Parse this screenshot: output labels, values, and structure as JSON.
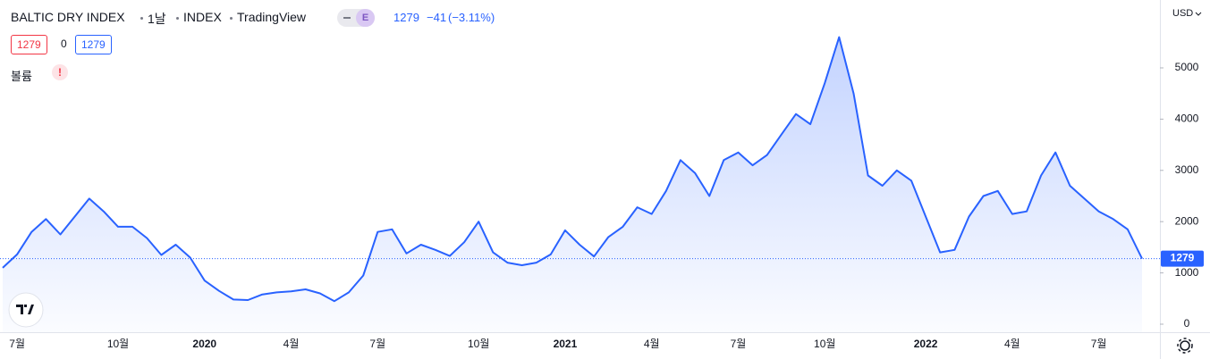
{
  "header": {
    "symbol": "BALTIC DRY INDEX",
    "interval": "1날",
    "exchange": "INDEX",
    "source": "TradingView",
    "badge": "E",
    "price": "1279",
    "change": "−41",
    "change_pct": "(−3.11%)",
    "sell": "1279",
    "spread": "0",
    "buy": "1279",
    "volume_label": "볼륨",
    "warning": "!",
    "currency": "USD"
  },
  "chart_data": {
    "type": "area",
    "categories": [
      null,
      "7월",
      null,
      null,
      null,
      null,
      null,
      null,
      "10월",
      null,
      null,
      null,
      null,
      null,
      "2020",
      null,
      null,
      null,
      null,
      null,
      "4월",
      null,
      null,
      null,
      null,
      null,
      "7월",
      null,
      null,
      null,
      null,
      null,
      null,
      "10월",
      null,
      null,
      null,
      null,
      null,
      "2021",
      null,
      null,
      null,
      null,
      null,
      "4월",
      null,
      null,
      null,
      null,
      null,
      "7월",
      null,
      null,
      null,
      null,
      null,
      "10월",
      null,
      null,
      null,
      null,
      null,
      null,
      "2022",
      null,
      null,
      null,
      null,
      null,
      "4월",
      null,
      null,
      null,
      null,
      null,
      "7월",
      null,
      null,
      null
    ],
    "series": [
      {
        "name": "BALTIC DRY INDEX",
        "color": "#2962ff",
        "values": [
          1100,
          1360,
          1800,
          2050,
          1750,
          2100,
          2450,
          2200,
          1900,
          1900,
          1680,
          1350,
          1550,
          1300,
          850,
          650,
          480,
          470,
          580,
          620,
          640,
          680,
          600,
          450,
          620,
          950,
          1800,
          1850,
          1380,
          1550,
          1450,
          1330,
          1600,
          2000,
          1400,
          1200,
          1150,
          1200,
          1360,
          1830,
          1550,
          1320,
          1700,
          1900,
          2280,
          2150,
          2600,
          3200,
          2950,
          2500,
          3200,
          3350,
          3100,
          3300,
          3700,
          4100,
          3900,
          4700,
          5600,
          4500,
          2900,
          2700,
          3000,
          2800,
          2100,
          1400,
          1450,
          2100,
          2500,
          2600,
          2150,
          2200,
          2900,
          3350,
          2700,
          2450,
          2200,
          2050,
          1850,
          1279
        ]
      }
    ],
    "ylim": [
      -157,
      6324
    ],
    "yticks": [
      0,
      1000,
      2000,
      3000,
      4000,
      5000
    ],
    "grid": false
  }
}
